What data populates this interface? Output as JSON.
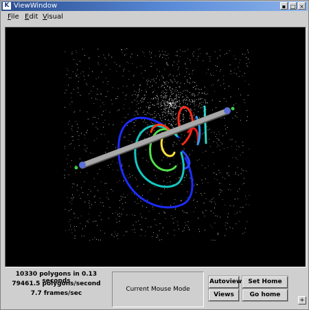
{
  "window": {
    "title": "ViewWindow",
    "logo_letter": "K"
  },
  "titlebar_buttons": {
    "minimize": "▪",
    "maximize": "□",
    "close": "×"
  },
  "menu": {
    "items": [
      "File",
      "Edit",
      "Visual"
    ]
  },
  "stats": {
    "line1": "10330 polygons in 0.13 seconds",
    "line2": "79461.5 polygons/second",
    "line3": "7.7 frames/sec"
  },
  "mouse_mode": {
    "label": "Current Mouse Mode"
  },
  "buttons": {
    "autoview": "Autoview",
    "set_home_view": "Set Home View",
    "views": "Views",
    "go_home": "Go home",
    "corner": "+"
  },
  "colors": {
    "background": "#000000",
    "particles": "#e6e6e6",
    "axis": "#a8a8a8"
  },
  "icons": {
    "scene": "3d-field-lines-render"
  }
}
